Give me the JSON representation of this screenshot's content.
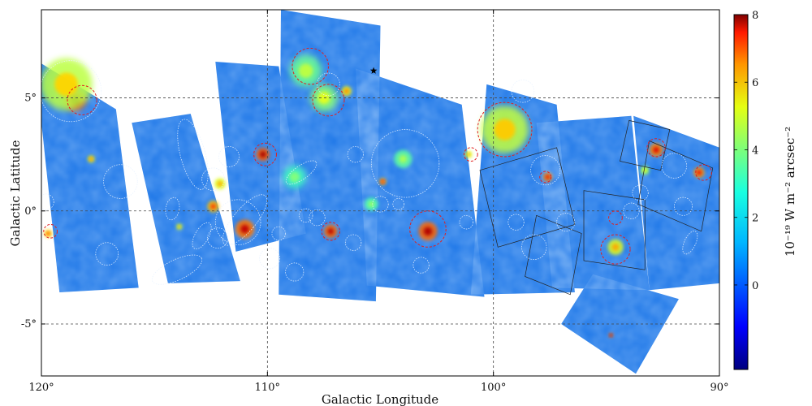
{
  "chart_data": {
    "type": "heatmap",
    "xlabel": "Galactic Longitude",
    "ylabel": "Galactic Latitude",
    "xlim": [
      120,
      90
    ],
    "ylim": [
      -7.3,
      8.9
    ],
    "x_ticks": [
      {
        "value": 120,
        "label": "120°"
      },
      {
        "value": 110,
        "label": "110°"
      },
      {
        "value": 100,
        "label": "100°"
      },
      {
        "value": 90,
        "label": "90°"
      }
    ],
    "y_ticks": [
      {
        "value": 5,
        "label": "5°"
      },
      {
        "value": 0,
        "label": "0°"
      },
      {
        "value": -5,
        "label": "-5°"
      }
    ],
    "grid": true,
    "colorbar": {
      "label": "10⁻¹⁹ W m⁻² arcsec⁻²",
      "range": [
        -2.5,
        8
      ],
      "ticks": [
        {
          "value": 0,
          "label": "0"
        },
        {
          "value": 2,
          "label": "2"
        },
        {
          "value": 4,
          "label": "4"
        },
        {
          "value": 6,
          "label": "6"
        },
        {
          "value": 8,
          "label": "8"
        }
      ],
      "colormap": "jet"
    },
    "colors": {
      "background_level": "#1f78e8",
      "frame": "#000000",
      "grid": "#444444"
    },
    "tiles": [
      {
        "name": "tile-far-left-top",
        "corners": [
          [
            120.3,
            6.7
          ],
          [
            116.7,
            4.5
          ],
          [
            115.7,
            -3.4
          ],
          [
            119.2,
            -3.6
          ]
        ]
      },
      {
        "name": "tile-left-mid",
        "corners": [
          [
            116.0,
            3.9
          ],
          [
            113.4,
            4.3
          ],
          [
            111.2,
            -3.1
          ],
          [
            114.4,
            -3.2
          ]
        ]
      },
      {
        "name": "tile-mid-left",
        "corners": [
          [
            112.3,
            6.6
          ],
          [
            109.5,
            6.4
          ],
          [
            108.3,
            -1.0
          ],
          [
            111.4,
            -1.8
          ]
        ]
      },
      {
        "name": "tile-mid-top",
        "corners": [
          [
            109.4,
            8.9
          ],
          [
            105.0,
            8.2
          ],
          [
            105.2,
            -4.0
          ],
          [
            109.5,
            -3.7
          ]
        ]
      },
      {
        "name": "tile-mid-right",
        "corners": [
          [
            106.1,
            6.3
          ],
          [
            101.4,
            4.7
          ],
          [
            100.4,
            -3.8
          ],
          [
            105.6,
            -3.3
          ]
        ]
      },
      {
        "name": "tile-right-mid",
        "corners": [
          [
            100.3,
            5.6
          ],
          [
            97.2,
            4.7
          ],
          [
            96.4,
            -3.6
          ],
          [
            101.0,
            -3.7
          ]
        ]
      },
      {
        "name": "tile-right",
        "corners": [
          [
            98.1,
            3.9
          ],
          [
            93.9,
            4.2
          ],
          [
            93.1,
            -3.5
          ],
          [
            97.4,
            -3.4
          ]
        ]
      },
      {
        "name": "tile-far-right",
        "corners": [
          [
            93.8,
            4.2
          ],
          [
            90.0,
            2.8
          ],
          [
            90.0,
            -3.2
          ],
          [
            93.1,
            -3.5
          ]
        ]
      },
      {
        "name": "tile-bottom-right",
        "corners": [
          [
            95.6,
            -2.8
          ],
          [
            91.8,
            -3.9
          ],
          [
            93.7,
            -7.2
          ],
          [
            97.0,
            -5.0
          ]
        ]
      }
    ],
    "sources": [
      {
        "name": "src-119.5",
        "l": 118.5,
        "b": 4.9,
        "intensity": 8.2,
        "radius": 0.45
      },
      {
        "name": "src-118.2",
        "l": 118.9,
        "b": 5.6,
        "intensity": 4.5,
        "radius": 1.15
      },
      {
        "name": "src-110.9",
        "l": 110.2,
        "b": 2.5,
        "intensity": 7.6,
        "radius": 0.3
      },
      {
        "name": "src-111.5",
        "l": 111.0,
        "b": -0.8,
        "intensity": 7.3,
        "radius": 0.42
      },
      {
        "name": "src-112.3",
        "l": 112.4,
        "b": 0.2,
        "intensity": 6.2,
        "radius": 0.26
      },
      {
        "name": "src-107.3",
        "l": 107.2,
        "b": -0.9,
        "intensity": 7.4,
        "radius": 0.3
      },
      {
        "name": "src-102.9",
        "l": 102.9,
        "b": -0.9,
        "intensity": 7.5,
        "radius": 0.42
      },
      {
        "name": "src-99.5",
        "l": 99.5,
        "b": 3.6,
        "intensity": 4.6,
        "radius": 1.05
      },
      {
        "name": "src-97.8",
        "l": 97.6,
        "b": 1.5,
        "intensity": 7.0,
        "radius": 0.2
      },
      {
        "name": "src-94.6",
        "l": 94.6,
        "b": -1.6,
        "intensity": 5.0,
        "radius": 0.35
      },
      {
        "name": "src-92.6",
        "l": 92.8,
        "b": 2.7,
        "intensity": 7.0,
        "radius": 0.3
      },
      {
        "name": "src-90.9",
        "l": 90.9,
        "b": 1.7,
        "intensity": 6.8,
        "radius": 0.24
      },
      {
        "name": "src-107.7",
        "l": 107.5,
        "b": 5.0,
        "intensity": 3.8,
        "radius": 0.6
      },
      {
        "name": "src-108.4",
        "l": 108.3,
        "b": 6.2,
        "intensity": 3.4,
        "radius": 0.7
      },
      {
        "name": "src-106.6",
        "l": 106.5,
        "b": 5.3,
        "intensity": 5.5,
        "radius": 0.22
      },
      {
        "name": "src-104.8",
        "l": 104.9,
        "b": 1.3,
        "intensity": 6.5,
        "radius": 0.16
      },
      {
        "name": "src-119.6",
        "l": 119.7,
        "b": -1.0,
        "intensity": 6.0,
        "radius": 0.18
      },
      {
        "name": "src-117.8",
        "l": 117.8,
        "b": 2.3,
        "intensity": 5.5,
        "radius": 0.16
      },
      {
        "name": "src-94.6b",
        "l": 94.8,
        "b": -5.5,
        "intensity": 7.5,
        "radius": 0.1
      },
      {
        "name": "src-101.2",
        "l": 101.1,
        "b": 2.5,
        "intensity": 5.0,
        "radius": 0.16
      },
      {
        "name": "src-111.9",
        "l": 112.1,
        "b": 1.2,
        "intensity": 5.0,
        "radius": 0.25
      },
      {
        "name": "src-113.8",
        "l": 113.9,
        "b": -0.7,
        "intensity": 4.8,
        "radius": 0.14
      },
      {
        "name": "src-93.2",
        "l": 93.3,
        "b": 1.8,
        "intensity": 4.0,
        "radius": 0.2
      },
      {
        "name": "src-104.0",
        "l": 104.0,
        "b": 2.3,
        "intensity": 3.2,
        "radius": 0.4
      },
      {
        "name": "src-105.2",
        "l": 105.4,
        "b": 0.3,
        "intensity": 3.0,
        "radius": 0.3
      },
      {
        "name": "src-109.3",
        "l": 108.8,
        "b": 1.5,
        "intensity": 2.8,
        "radius": 0.5
      }
    ],
    "red_circles": [
      {
        "l": 118.2,
        "b": 4.9,
        "r": 0.65
      },
      {
        "l": 110.1,
        "b": 2.5,
        "r": 0.5
      },
      {
        "l": 107.2,
        "b": -0.9,
        "r": 0.4
      },
      {
        "l": 102.9,
        "b": -0.8,
        "r": 0.8
      },
      {
        "l": 99.5,
        "b": 3.6,
        "r": 1.2
      },
      {
        "l": 108.1,
        "b": 6.4,
        "r": 0.8
      },
      {
        "l": 107.3,
        "b": 4.9,
        "r": 0.7
      },
      {
        "l": 94.6,
        "b": -1.7,
        "r": 0.65
      },
      {
        "l": 94.6,
        "b": -0.3,
        "r": 0.3
      },
      {
        "l": 101.0,
        "b": 2.5,
        "r": 0.3
      },
      {
        "l": 119.6,
        "b": -0.9,
        "r": 0.3
      },
      {
        "l": 90.7,
        "b": 1.7,
        "r": 0.35
      },
      {
        "l": 92.8,
        "b": 2.8,
        "r": 0.4
      },
      {
        "l": 97.7,
        "b": 1.5,
        "r": 0.25
      }
    ],
    "white_circles": [
      {
        "l": 118.7,
        "b": 5.3,
        "r": 1.35
      },
      {
        "l": 116.5,
        "b": 1.3,
        "r": 0.75
      },
      {
        "l": 103.9,
        "b": 2.1,
        "r": 1.5
      },
      {
        "l": 98.7,
        "b": 5.3,
        "r": 0.5
      },
      {
        "l": 97.7,
        "b": 1.8,
        "r": 0.65
      },
      {
        "l": 92.0,
        "b": 2.0,
        "r": 0.55
      },
      {
        "l": 111.3,
        "b": -0.5,
        "r": 1.0
      },
      {
        "l": 112.4,
        "b": 1.4,
        "r": 0.5
      },
      {
        "l": 108.3,
        "b": -0.2,
        "r": 0.3
      },
      {
        "l": 111.7,
        "b": 2.4,
        "r": 0.45
      },
      {
        "l": 106.1,
        "b": 2.5,
        "r": 0.35
      },
      {
        "l": 105.0,
        "b": 0.3,
        "r": 0.35
      },
      {
        "l": 104.2,
        "b": 0.3,
        "r": 0.25
      },
      {
        "l": 101.2,
        "b": -0.5,
        "r": 0.3
      },
      {
        "l": 99.0,
        "b": -0.5,
        "r": 0.35
      },
      {
        "l": 98.2,
        "b": -1.6,
        "r": 0.55
      },
      {
        "l": 117.1,
        "b": -1.9,
        "r": 0.5
      },
      {
        "l": 107.8,
        "b": -0.3,
        "r": 0.35
      },
      {
        "l": 109.5,
        "b": -1.0,
        "r": 0.3
      },
      {
        "l": 106.2,
        "b": -1.4,
        "r": 0.35
      },
      {
        "l": 108.8,
        "b": -2.7,
        "r": 0.4
      },
      {
        "l": 96.8,
        "b": -0.5,
        "r": 0.4
      },
      {
        "l": 93.9,
        "b": 0.0,
        "r": 0.35
      },
      {
        "l": 119.8,
        "b": 0.4,
        "r": 0.35
      },
      {
        "l": 107.3,
        "b": 5.6,
        "r": 0.5
      },
      {
        "l": 103.2,
        "b": -2.4,
        "r": 0.35
      },
      {
        "l": 112.2,
        "b": -1.2,
        "r": 0.45
      },
      {
        "l": 91.6,
        "b": 0.2,
        "r": 0.4
      },
      {
        "l": 93.5,
        "b": 0.8,
        "r": 0.35
      },
      {
        "l": 109.9,
        "b": -2.1,
        "r": 0.45
      }
    ],
    "white_ellipses": [
      {
        "l": 113.3,
        "b": 2.5,
        "rx": 0.55,
        "ry": 1.6,
        "angle": -15
      },
      {
        "l": 108.5,
        "b": 1.7,
        "rx": 0.8,
        "ry": 0.3,
        "angle": -35
      },
      {
        "l": 114.0,
        "b": -2.6,
        "rx": 1.2,
        "ry": 0.45,
        "angle": -25
      },
      {
        "l": 112.9,
        "b": -1.1,
        "rx": 0.3,
        "ry": 0.65,
        "angle": 30
      },
      {
        "l": 91.3,
        "b": -1.4,
        "rx": 0.25,
        "ry": 0.55,
        "angle": 25
      },
      {
        "l": 114.2,
        "b": 0.1,
        "rx": 0.3,
        "ry": 0.5,
        "angle": 10
      },
      {
        "l": 111.0,
        "b": -0.4,
        "rx": 0.5,
        "ry": 1.4,
        "angle": 40
      }
    ],
    "black_squares": [
      {
        "corners": [
          [
            100.6,
            1.8
          ],
          [
            97.2,
            2.8
          ],
          [
            96.4,
            -0.6
          ],
          [
            99.8,
            -1.6
          ]
        ]
      },
      {
        "corners": [
          [
            98.1,
            -0.2
          ],
          [
            96.1,
            -1.0
          ],
          [
            96.6,
            -3.7
          ],
          [
            98.6,
            -2.9
          ]
        ]
      },
      {
        "corners": [
          [
            93.1,
            3.1
          ],
          [
            90.3,
            1.9
          ],
          [
            90.8,
            -0.9
          ],
          [
            93.6,
            0.3
          ]
        ]
      },
      {
        "corners": [
          [
            96.0,
            0.9
          ],
          [
            93.3,
            0.5
          ],
          [
            93.3,
            -2.6
          ],
          [
            96.0,
            -2.2
          ]
        ]
      },
      {
        "corners": [
          [
            94.0,
            4.0
          ],
          [
            92.2,
            3.6
          ],
          [
            92.6,
            1.8
          ],
          [
            94.4,
            2.2
          ]
        ]
      }
    ],
    "star_marker": {
      "l": 105.3,
      "b": 6.2
    }
  }
}
